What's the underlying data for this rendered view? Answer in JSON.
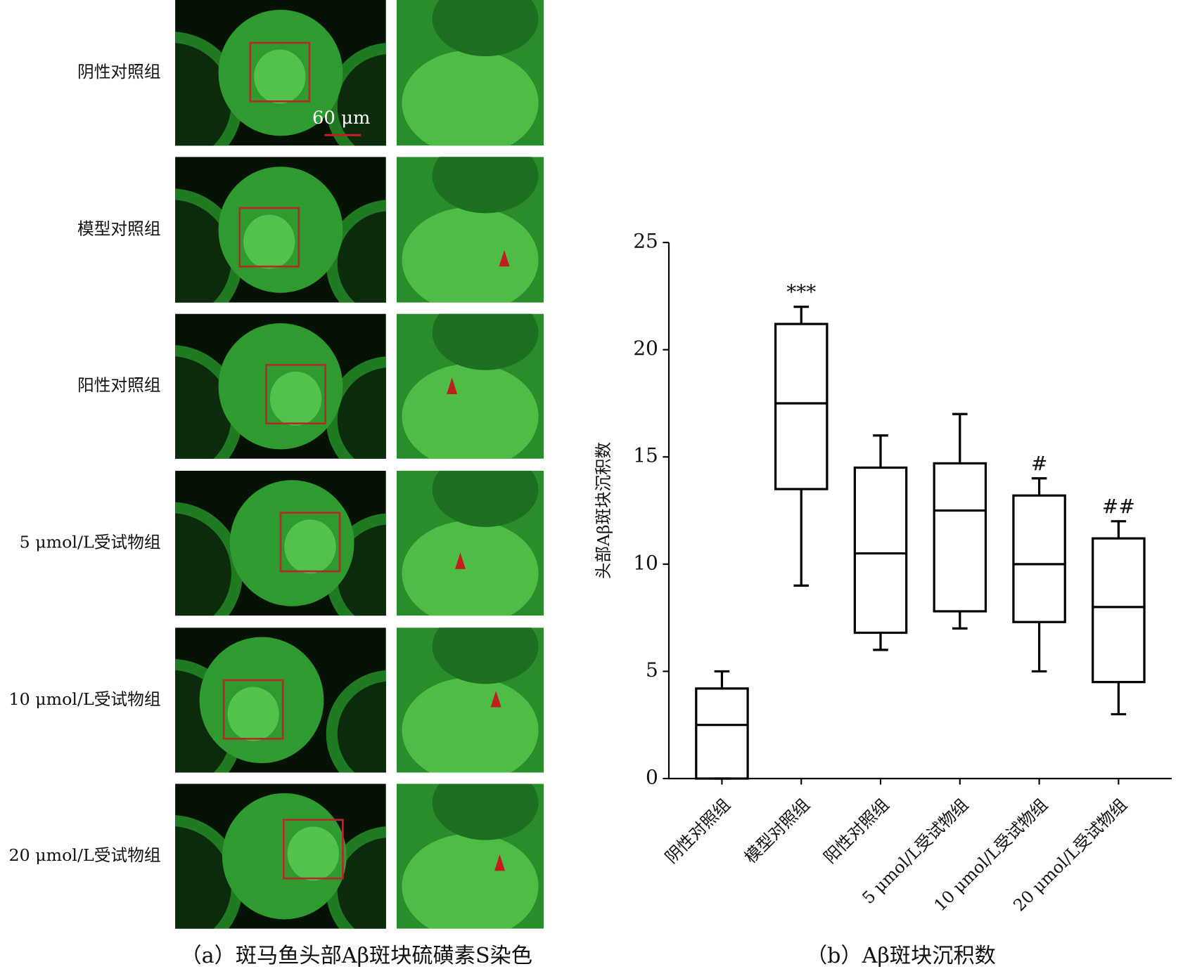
{
  "figure_a": {
    "caption": "（a）斑马鱼头部Aβ斑块硫磺素S染色",
    "row_labels": [
      "阴性对照组",
      "模型对照组",
      "阳性对照组",
      "5 μmol/L受试物组",
      "10 μmol/L受试物组",
      "20 μmol/L受试物组"
    ],
    "scale_bar": "60 μm"
  },
  "chart_data": {
    "type": "box",
    "caption": "（b）Aβ斑块沉积数",
    "y_label": "头部Aβ斑块沉积数",
    "categories": [
      "阴性对照组",
      "模型对照组",
      "阳性对照组",
      "5 μmol/L受试物组",
      "10 μmol/L受试物组",
      "20 μmol/L受试物组"
    ],
    "data": [
      {
        "min": 0,
        "q1": 0,
        "median": 2.5,
        "q3": 4.2,
        "max": 5
      },
      {
        "min": 9,
        "q1": 13.5,
        "median": 17.5,
        "q3": 21.2,
        "max": 22
      },
      {
        "min": 6,
        "q1": 6.8,
        "median": 10.5,
        "q3": 14.5,
        "max": 16
      },
      {
        "min": 7,
        "q1": 7.8,
        "median": 12.5,
        "q3": 14.7,
        "max": 17
      },
      {
        "min": 5,
        "q1": 7.3,
        "median": 10,
        "q3": 13.2,
        "max": 14
      },
      {
        "min": 3,
        "q1": 4.5,
        "median": 8,
        "q3": 11.2,
        "max": 12
      }
    ],
    "annotations": [
      null,
      "***",
      null,
      null,
      "#",
      "##"
    ],
    "color": "#000000",
    "ylim": [
      0,
      25
    ],
    "yticks": [
      0,
      5,
      10,
      15,
      20,
      25
    ]
  }
}
